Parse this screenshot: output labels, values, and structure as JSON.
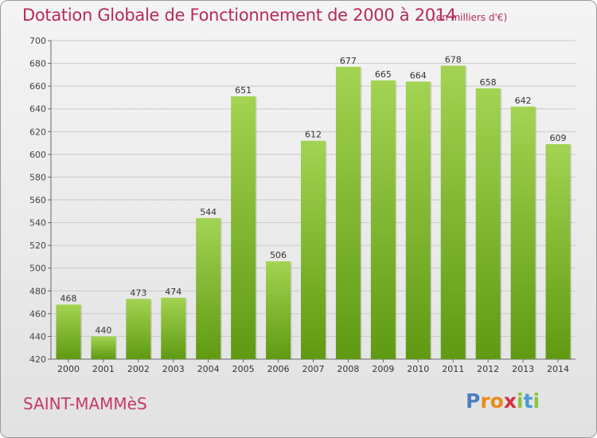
{
  "title": "Dotation Globale de Fonctionnement de 2000 à 2014",
  "unit_note": "(en milliers d'€)",
  "commune": "SAINT-MAMMèS",
  "logo": {
    "letters": [
      "P",
      "r",
      "o",
      "x",
      "i",
      "t",
      "i"
    ],
    "colors": [
      "#4a7fc1",
      "#e88b1a",
      "#e88b1a",
      "#d0323e",
      "#8cc43f",
      "#4a9ad6",
      "#8cc43f"
    ]
  },
  "colors": {
    "bar_light": "#a3d352",
    "bar_dark": "#5f9a12",
    "title": "#b6295e",
    "grid": "#c9c9c9"
  },
  "chart_data": {
    "type": "bar",
    "categories": [
      "2000",
      "2001",
      "2002",
      "2003",
      "2004",
      "2005",
      "2006",
      "2007",
      "2008",
      "2009",
      "2010",
      "2011",
      "2012",
      "2013",
      "2014"
    ],
    "values": [
      468,
      440,
      473,
      474,
      544,
      651,
      506,
      612,
      677,
      665,
      664,
      678,
      658,
      642,
      609
    ],
    "title": "Dotation Globale de Fonctionnement de 2000 à 2014",
    "xlabel": "",
    "ylabel": "",
    "ylim": [
      420,
      700
    ],
    "yticks": [
      420,
      440,
      460,
      480,
      500,
      520,
      540,
      560,
      580,
      600,
      620,
      640,
      660,
      680,
      700
    ],
    "grid": true,
    "data_labels": true
  }
}
